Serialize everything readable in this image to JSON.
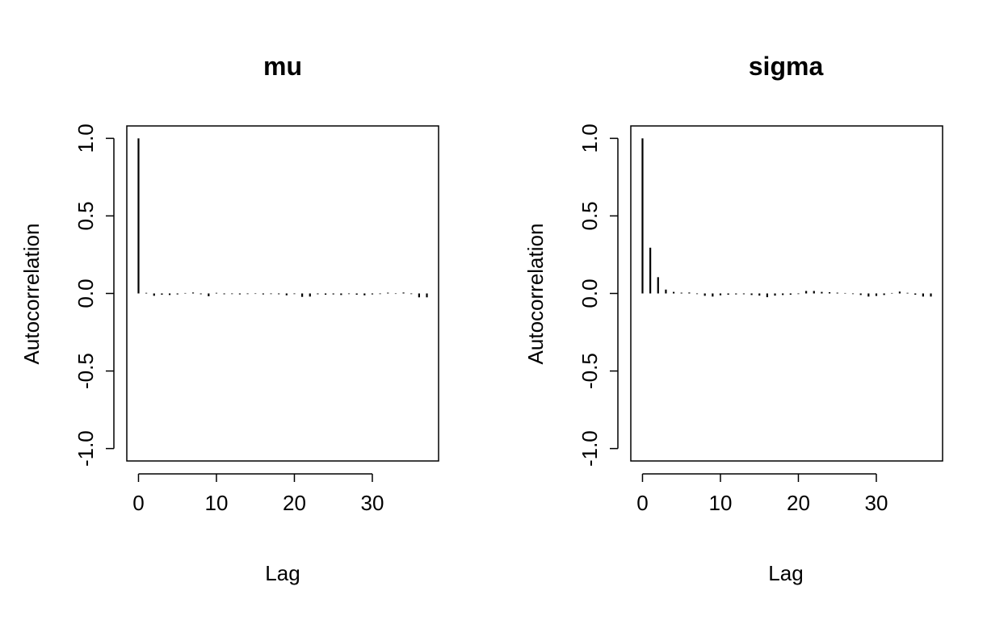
{
  "chart_data": [
    {
      "type": "bar",
      "title": "mu",
      "xlabel": "Lag",
      "ylabel": "Autocorrelation",
      "xlim": [
        -1.5,
        38.5
      ],
      "ylim": [
        -1.08,
        1.08
      ],
      "xticks": [
        0,
        10,
        20,
        30
      ],
      "xtick_labels": [
        "0",
        "10",
        "20",
        "30"
      ],
      "yticks": [
        -1.0,
        -0.5,
        0.0,
        0.5,
        1.0
      ],
      "ytick_labels": [
        "-1.0",
        "-0.5",
        "0.0",
        "0.5",
        "1.0"
      ],
      "x": [
        0,
        1,
        2,
        3,
        4,
        5,
        6,
        7,
        8,
        9,
        10,
        11,
        12,
        13,
        14,
        15,
        16,
        17,
        18,
        19,
        20,
        21,
        22,
        23,
        24,
        25,
        26,
        27,
        28,
        29,
        30,
        31,
        32,
        33,
        34,
        35,
        36,
        37
      ],
      "values": [
        1.0,
        0.004,
        -0.015,
        -0.008,
        -0.01,
        -0.006,
        0.003,
        0.006,
        -0.005,
        -0.018,
        0.004,
        -0.005,
        -0.004,
        -0.006,
        -0.004,
        -0.003,
        -0.006,
        -0.004,
        -0.005,
        -0.012,
        -0.004,
        -0.022,
        -0.02,
        -0.005,
        -0.008,
        -0.006,
        -0.01,
        -0.004,
        -0.008,
        -0.012,
        -0.006,
        -0.004,
        0.005,
        -0.003,
        0.006,
        -0.004,
        -0.025,
        -0.025
      ]
    },
    {
      "type": "bar",
      "title": "sigma",
      "xlabel": "Lag",
      "ylabel": "Autocorrelation",
      "xlim": [
        -1.5,
        38.5
      ],
      "ylim": [
        -1.08,
        1.08
      ],
      "xticks": [
        0,
        10,
        20,
        30
      ],
      "xtick_labels": [
        "0",
        "10",
        "20",
        "30"
      ],
      "yticks": [
        -1.0,
        -0.5,
        0.0,
        0.5,
        1.0
      ],
      "ytick_labels": [
        "-1.0",
        "-0.5",
        "0.0",
        "0.5",
        "1.0"
      ],
      "x": [
        0,
        1,
        2,
        3,
        4,
        5,
        6,
        7,
        8,
        9,
        10,
        11,
        12,
        13,
        14,
        15,
        16,
        17,
        18,
        19,
        20,
        21,
        22,
        23,
        24,
        25,
        26,
        27,
        28,
        29,
        30,
        31,
        32,
        33,
        34,
        35,
        36,
        37
      ],
      "values": [
        1.0,
        0.295,
        0.105,
        0.025,
        0.01,
        0.005,
        0.006,
        -0.004,
        -0.015,
        -0.02,
        -0.012,
        -0.008,
        -0.006,
        -0.005,
        -0.01,
        -0.014,
        -0.024,
        -0.014,
        -0.01,
        -0.008,
        -0.004,
        0.016,
        0.016,
        0.01,
        0.008,
        0.005,
        0.003,
        -0.004,
        -0.01,
        -0.02,
        -0.016,
        -0.01,
        0.003,
        0.012,
        0.004,
        -0.008,
        -0.02,
        -0.02
      ]
    }
  ]
}
